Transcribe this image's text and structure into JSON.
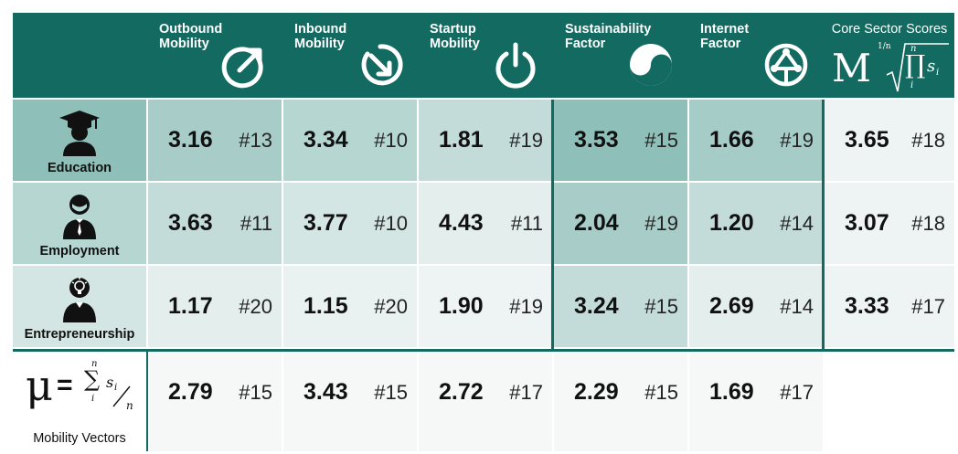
{
  "columns": [
    {
      "label": "Outbound\nMobility",
      "icon": "outbound-arrow-icon"
    },
    {
      "label": "Inbound\nMobility",
      "icon": "inbound-arrow-icon"
    },
    {
      "label": "Startup\nMobility",
      "icon": "power-icon"
    },
    {
      "label": "Sustainability\nFactor",
      "icon": "yin-yang-icon"
    },
    {
      "label": "Internet\nFactor",
      "icon": "network-globe-icon"
    }
  ],
  "core": {
    "title": "Core Sector Scores",
    "formula_symbol": "M",
    "formula_root_index": "1/n",
    "formula_product_upper": "n",
    "formula_product_lower": "i",
    "formula_term": "s",
    "formula_term_sub": "i"
  },
  "rows": [
    {
      "label": "Education",
      "icon": "graduate-person-icon",
      "cells": [
        {
          "value": "3.16",
          "rank": "#13",
          "color": "#a8cdc8"
        },
        {
          "value": "3.34",
          "rank": "#10",
          "color": "#b6d6d2"
        },
        {
          "value": "1.81",
          "rank": "#19",
          "color": "#c3dcd9"
        },
        {
          "value": "3.53",
          "rank": "#15",
          "color": "#8fbfb9"
        },
        {
          "value": "1.66",
          "rank": "#19",
          "color": "#a6ccc7"
        }
      ],
      "core": {
        "value": "3.65",
        "rank": "#18"
      },
      "header_color": "#8fbfb9"
    },
    {
      "label": "Employment",
      "icon": "business-person-icon",
      "cells": [
        {
          "value": "3.63",
          "rank": "#11",
          "color": "#c3dcd9"
        },
        {
          "value": "3.77",
          "rank": "#10",
          "color": "#d4e6e3"
        },
        {
          "value": "4.43",
          "rank": "#11",
          "color": "#e3eeed"
        },
        {
          "value": "2.04",
          "rank": "#19",
          "color": "#a8cdc8"
        },
        {
          "value": "1.20",
          "rank": "#14",
          "color": "#c3dcd9"
        }
      ],
      "core": {
        "value": "3.07",
        "rank": "#18"
      },
      "header_color": "#b6d6d2"
    },
    {
      "label": "Entrepreneurship",
      "icon": "idea-person-icon",
      "cells": [
        {
          "value": "1.17",
          "rank": "#20",
          "color": "#e3eeed"
        },
        {
          "value": "1.15",
          "rank": "#20",
          "color": "#e9f2f1"
        },
        {
          "value": "1.90",
          "rank": "#19",
          "color": "#eef4f3"
        },
        {
          "value": "3.24",
          "rank": "#15",
          "color": "#c3dcd9"
        },
        {
          "value": "2.69",
          "rank": "#14",
          "color": "#e3eeed"
        }
      ],
      "core": {
        "value": "3.33",
        "rank": "#17"
      },
      "header_color": "#d4e6e3"
    }
  ],
  "mobility_vectors": {
    "label": "Mobility Vectors",
    "formula_symbol": "μ",
    "formula_equals": "=",
    "formula_sum_upper": "n",
    "formula_sum_lower": "i",
    "formula_term": "s",
    "formula_term_sub": "i",
    "formula_divisor": "n",
    "cells": [
      {
        "value": "2.79",
        "rank": "#15"
      },
      {
        "value": "3.43",
        "rank": "#15"
      },
      {
        "value": "2.72",
        "rank": "#17"
      },
      {
        "value": "2.29",
        "rank": "#15"
      },
      {
        "value": "1.69",
        "rank": "#17"
      }
    ]
  },
  "colors": {
    "header_bg": "#126a60",
    "core_bg": "#eef4f3",
    "mv_bg": "#f5f8f7",
    "line": "#126a60"
  }
}
